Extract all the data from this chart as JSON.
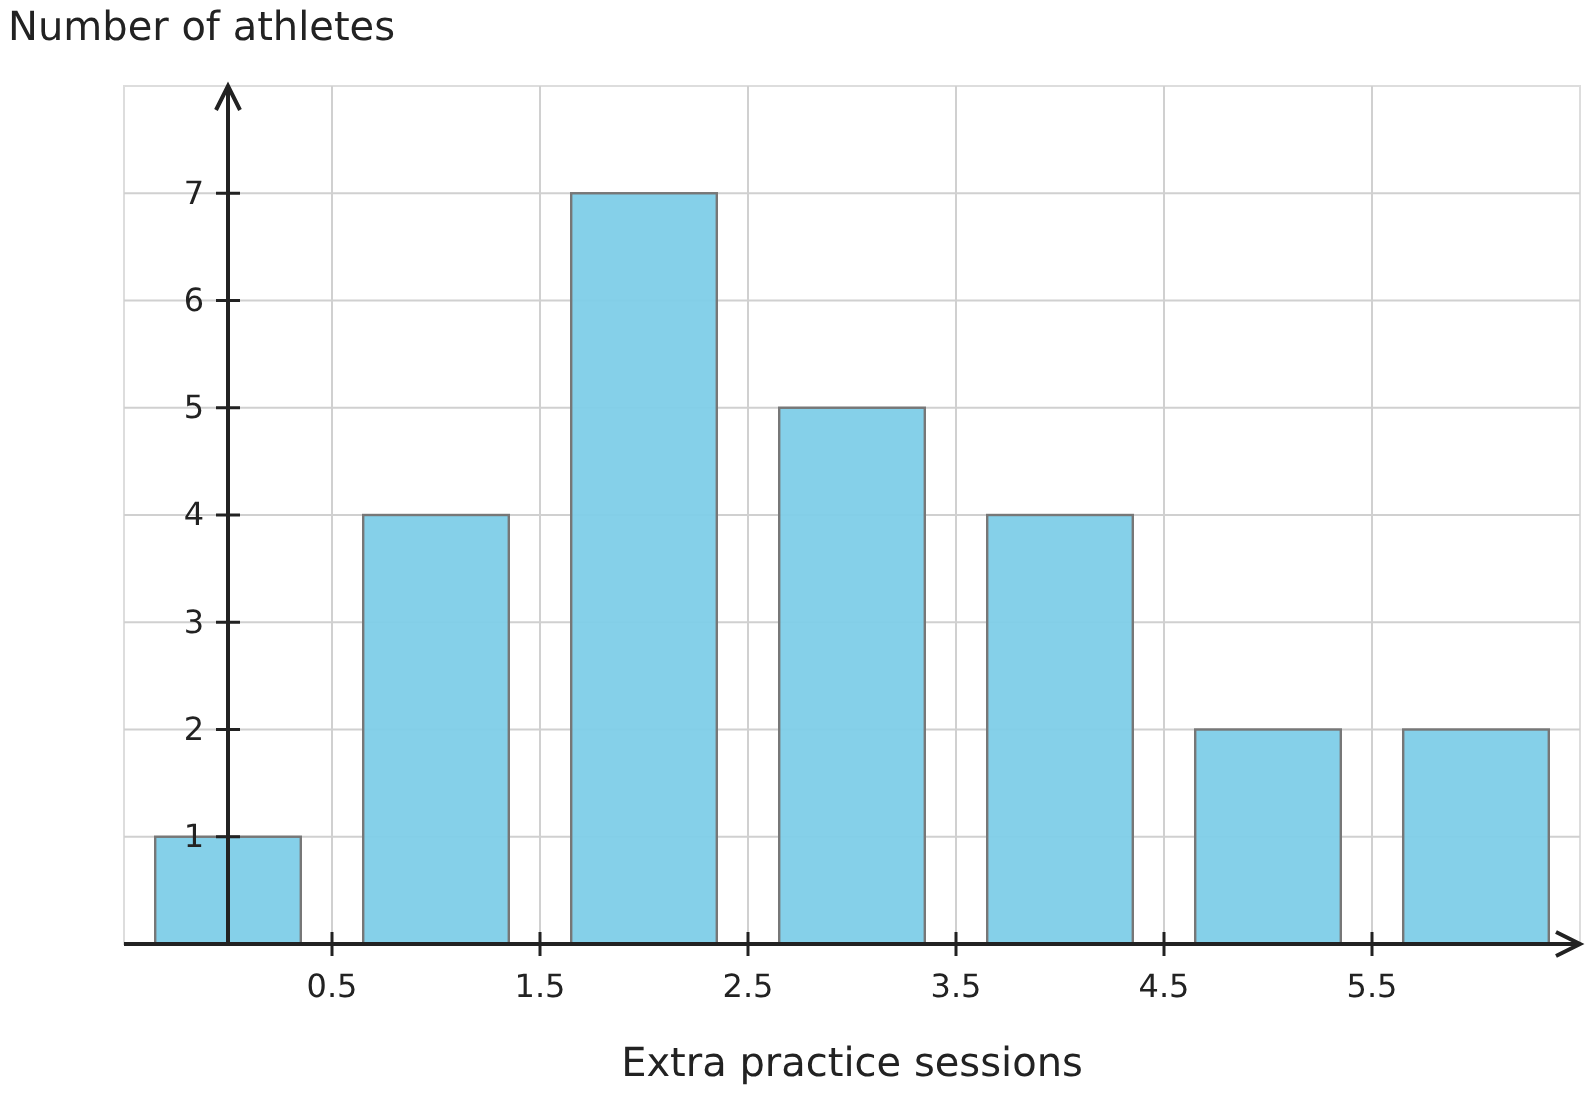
{
  "chart_data": {
    "type": "bar",
    "xlabel": "Extra practice sessions",
    "ylabel": "Number of athletes",
    "x": [
      0,
      1,
      2,
      3,
      4,
      5,
      6
    ],
    "values": [
      1,
      4,
      7,
      5,
      4,
      2,
      2
    ],
    "color": "#7ecde8",
    "xlim": [
      -0.5,
      6.5
    ],
    "xticks": [
      0.5,
      1.5,
      2.5,
      3.5,
      4.5,
      5.5
    ],
    "ylim": [
      0,
      8
    ],
    "yticks": [
      1,
      2,
      3,
      4,
      5,
      6,
      7
    ],
    "grid": true
  }
}
